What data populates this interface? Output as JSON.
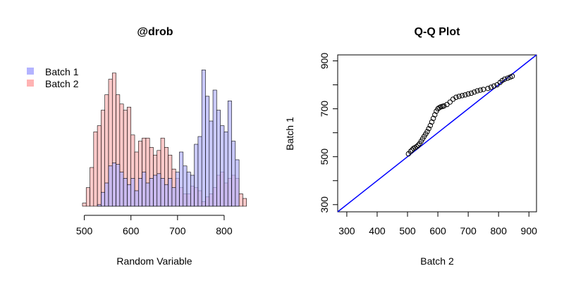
{
  "chart_data": [
    {
      "type": "bar",
      "subtype": "overlaid-histogram",
      "title": "@drob",
      "xlabel": "Random Variable",
      "ylabel": "",
      "x_ticks": [
        "500",
        "600",
        "700",
        "800"
      ],
      "x_tick_values": [
        500,
        600,
        700,
        800
      ],
      "xlim": [
        490,
        850
      ],
      "legend": {
        "placement": "top-left",
        "entries": [
          "Batch 1",
          "Batch 2"
        ]
      },
      "bin_width": 8,
      "series": [
        {
          "name": "Batch 1",
          "color": "#b3b3ff",
          "bins": [
            [
              512,
              520,
              0
            ],
            [
              520,
              528,
              0
            ],
            [
              528,
              536,
              1
            ],
            [
              536,
              544,
              9
            ],
            [
              544,
              552,
              15
            ],
            [
              552,
              560,
              26
            ],
            [
              560,
              568,
              28
            ],
            [
              568,
              576,
              27
            ],
            [
              576,
              584,
              22
            ],
            [
              584,
              592,
              18
            ],
            [
              592,
              600,
              14
            ],
            [
              600,
              608,
              18
            ],
            [
              608,
              616,
              10
            ],
            [
              616,
              624,
              18
            ],
            [
              624,
              632,
              22
            ],
            [
              632,
              640,
              15
            ],
            [
              640,
              648,
              18
            ],
            [
              648,
              656,
              20
            ],
            [
              656,
              664,
              21
            ],
            [
              664,
              672,
              18
            ],
            [
              672,
              680,
              14
            ],
            [
              680,
              688,
              18
            ],
            [
              688,
              696,
              12
            ],
            [
              696,
              704,
              22
            ],
            [
              704,
              712,
              35
            ],
            [
              712,
              720,
              26
            ],
            [
              720,
              728,
              22
            ],
            [
              728,
              736,
              20
            ],
            [
              736,
              744,
              40
            ],
            [
              744,
              752,
              45
            ],
            [
              752,
              760,
              88
            ],
            [
              760,
              768,
              71
            ],
            [
              768,
              776,
              55
            ],
            [
              776,
              784,
              75
            ],
            [
              784,
              792,
              62
            ],
            [
              792,
              800,
              52
            ],
            [
              800,
              808,
              48
            ],
            [
              808,
              816,
              68
            ],
            [
              816,
              824,
              42
            ],
            [
              824,
              832,
              30
            ]
          ]
        },
        {
          "name": "Batch 2",
          "color": "#ffb3b3",
          "bins": [
            [
              496,
              504,
              2
            ],
            [
              504,
              512,
              12
            ],
            [
              512,
              520,
              25
            ],
            [
              520,
              528,
              48
            ],
            [
              528,
              536,
              52
            ],
            [
              536,
              544,
              62
            ],
            [
              544,
              552,
              72
            ],
            [
              552,
              560,
              82
            ],
            [
              560,
              568,
              86
            ],
            [
              568,
              576,
              72
            ],
            [
              576,
              584,
              66
            ],
            [
              584,
              592,
              62
            ],
            [
              592,
              600,
              64
            ],
            [
              600,
              608,
              46
            ],
            [
              608,
              616,
              35
            ],
            [
              616,
              624,
              42
            ],
            [
              624,
              632,
              44
            ],
            [
              632,
              640,
              44
            ],
            [
              640,
              648,
              38
            ],
            [
              648,
              656,
              33
            ],
            [
              656,
              664,
              36
            ],
            [
              664,
              672,
              44
            ],
            [
              672,
              680,
              38
            ],
            [
              680,
              688,
              33
            ],
            [
              688,
              696,
              24
            ],
            [
              696,
              704,
              18
            ],
            [
              704,
              712,
              12
            ],
            [
              712,
              720,
              8
            ],
            [
              720,
              728,
              8
            ],
            [
              728,
              736,
              13
            ],
            [
              736,
              744,
              12
            ],
            [
              744,
              752,
              10
            ],
            [
              752,
              760,
              3
            ],
            [
              760,
              768,
              6
            ],
            [
              768,
              776,
              8
            ],
            [
              776,
              784,
              12
            ],
            [
              784,
              792,
              20
            ],
            [
              792,
              800,
              22
            ],
            [
              800,
              808,
              15
            ],
            [
              808,
              816,
              18
            ],
            [
              816,
              824,
              20
            ],
            [
              824,
              832,
              18
            ],
            [
              832,
              840,
              8
            ],
            [
              840,
              848,
              5
            ]
          ]
        }
      ]
    },
    {
      "type": "scatter",
      "subtype": "qq-plot",
      "title": "Q-Q Plot",
      "xlabel": "Batch 2",
      "ylabel": "Batch 1",
      "xlim": [
        270,
        925
      ],
      "ylim": [
        270,
        925
      ],
      "x_ticks": [
        "300",
        "400",
        "500",
        "600",
        "700",
        "800",
        "900"
      ],
      "x_tick_values": [
        300,
        400,
        500,
        600,
        700,
        800,
        900
      ],
      "y_ticks": [
        "300",
        "500",
        "700",
        "900"
      ],
      "y_tick_values": [
        300,
        400,
        500,
        600,
        700,
        800,
        900
      ],
      "y_tick_label_values": [
        300,
        500,
        700,
        900
      ],
      "reference_line": {
        "slope": 1,
        "intercept": 0,
        "color": "#0000ff"
      },
      "point_color": "#000000",
      "points": [
        [
          503,
          512
        ],
        [
          510,
          522
        ],
        [
          515,
          528
        ],
        [
          520,
          535
        ],
        [
          525,
          538
        ],
        [
          530,
          542
        ],
        [
          535,
          548
        ],
        [
          540,
          555
        ],
        [
          545,
          565
        ],
        [
          550,
          575
        ],
        [
          555,
          585
        ],
        [
          560,
          595
        ],
        [
          565,
          605
        ],
        [
          570,
          617
        ],
        [
          575,
          630
        ],
        [
          580,
          645
        ],
        [
          585,
          660
        ],
        [
          590,
          675
        ],
        [
          595,
          690
        ],
        [
          600,
          700
        ],
        [
          605,
          705
        ],
        [
          610,
          708
        ],
        [
          615,
          710
        ],
        [
          620,
          712
        ],
        [
          630,
          718
        ],
        [
          640,
          728
        ],
        [
          650,
          740
        ],
        [
          660,
          748
        ],
        [
          670,
          752
        ],
        [
          680,
          755
        ],
        [
          690,
          758
        ],
        [
          700,
          762
        ],
        [
          710,
          765
        ],
        [
          720,
          770
        ],
        [
          730,
          775
        ],
        [
          740,
          778
        ],
        [
          750,
          781
        ],
        [
          765,
          785
        ],
        [
          775,
          790
        ],
        [
          785,
          795
        ],
        [
          795,
          800
        ],
        [
          805,
          810
        ],
        [
          812,
          818
        ],
        [
          820,
          824
        ],
        [
          830,
          828
        ],
        [
          838,
          832
        ],
        [
          845,
          836
        ]
      ]
    }
  ]
}
